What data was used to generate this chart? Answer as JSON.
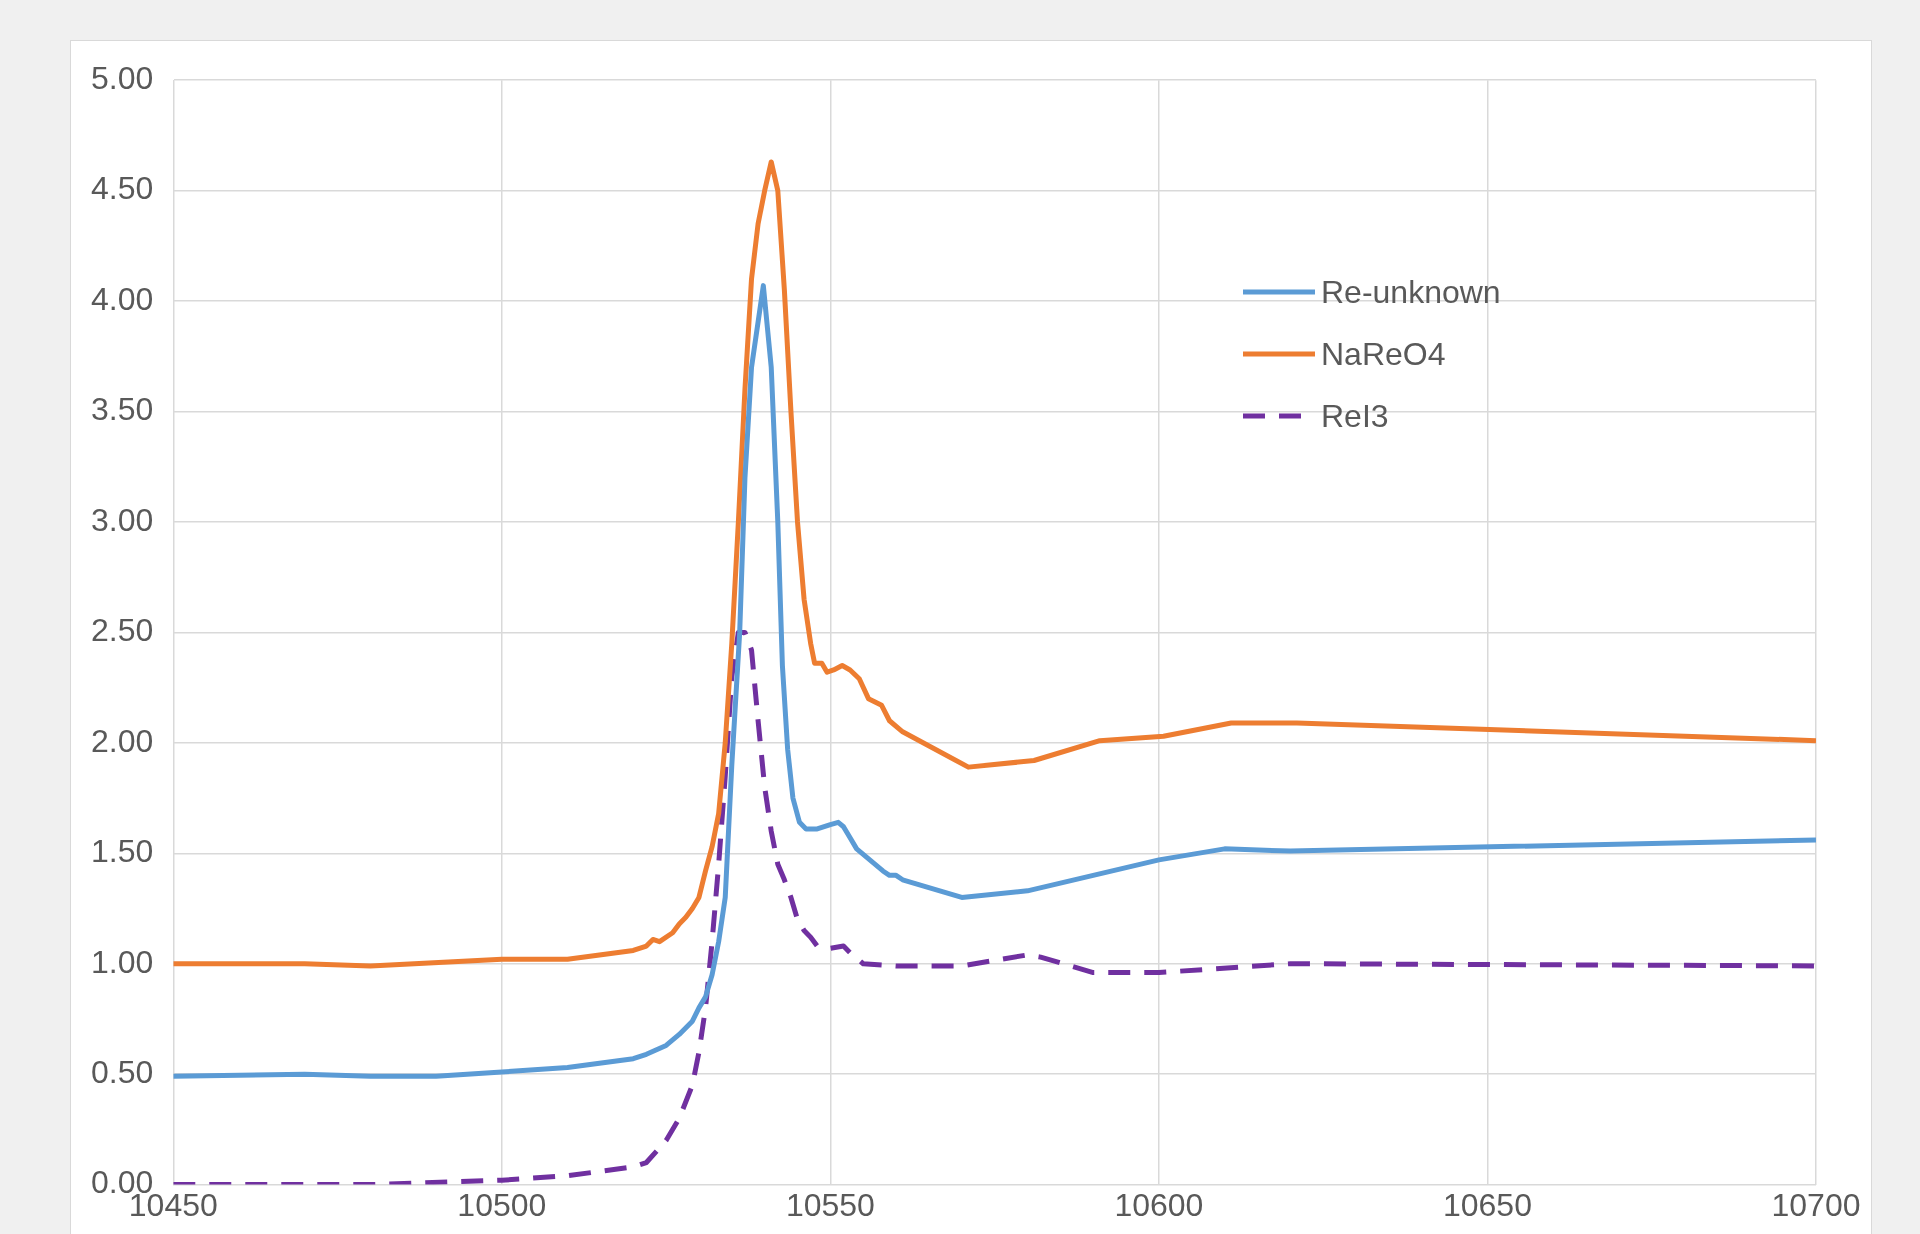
{
  "chart_data": {
    "type": "line",
    "xlim": [
      10450,
      10700
    ],
    "xticks": [
      10450,
      10500,
      10550,
      10600,
      10650,
      10700
    ],
    "ylim": [
      0,
      5
    ],
    "yticks": [
      {
        "value": 0,
        "label": "0.00"
      },
      {
        "value": 0.5,
        "label": "0.50"
      },
      {
        "value": 1,
        "label": "1.00"
      },
      {
        "value": 1.5,
        "label": "1.50"
      },
      {
        "value": 2,
        "label": "2.00"
      },
      {
        "value": 2.5,
        "label": "2.50"
      },
      {
        "value": 3,
        "label": "3.00"
      },
      {
        "value": 3.5,
        "label": "3.50"
      },
      {
        "value": 4,
        "label": "4.00"
      },
      {
        "value": 4.5,
        "label": "4.50"
      },
      {
        "value": 5,
        "label": "5.00"
      }
    ],
    "grid": true,
    "legend": "top right",
    "marker": "none",
    "series": [
      {
        "name": "Re-unknown",
        "color": "#5b9bd5",
        "line_style": "solid",
        "x": [
          10450,
          10470,
          10480,
          10490,
          10500,
          10510,
          10520,
          10522,
          10525,
          10527,
          10529,
          10530,
          10531,
          10532,
          10533,
          10534,
          10535,
          10536.2,
          10537,
          10538,
          10539.8,
          10541,
          10542,
          10542.7,
          10543.5,
          10544.3,
          10545.3,
          10546.3,
          10548,
          10550,
          10551.2,
          10552,
          10553,
          10554,
          10556,
          10558,
          10559,
          10560,
          10561,
          10570,
          10580,
          10590,
          10600,
          10610,
          10620,
          10700
        ],
        "values": [
          0.49,
          0.5,
          0.49,
          0.49,
          0.51,
          0.53,
          0.57,
          0.59,
          0.63,
          0.68,
          0.74,
          0.8,
          0.85,
          0.95,
          1.1,
          1.3,
          1.9,
          2.5,
          3.2,
          3.7,
          4.07,
          3.7,
          3.0,
          2.35,
          1.97,
          1.75,
          1.64,
          1.61,
          1.61,
          1.63,
          1.64,
          1.62,
          1.57,
          1.52,
          1.47,
          1.42,
          1.4,
          1.4,
          1.38,
          1.3,
          1.33,
          1.4,
          1.47,
          1.52,
          1.51,
          1.56
        ]
      },
      {
        "name": "NaReO4",
        "color": "#ed7d31",
        "line_style": "solid",
        "x": [
          10450,
          10470,
          10480,
          10500,
          10510,
          10520,
          10522,
          10523,
          10524,
          10526,
          10527,
          10528,
          10529,
          10530,
          10531,
          10532,
          10533,
          10534,
          10535,
          10536,
          10537,
          10538,
          10539,
          10540,
          10541,
          10542,
          10543,
          10544,
          10545,
          10546,
          10547,
          10547.6,
          10548.7,
          10549.5,
          10550.5,
          10551.8,
          10553,
          10554.4,
          10555.8,
          10557.8,
          10559,
          10561,
          10571,
          10581,
          10591,
          10600.7,
          10611,
          10621,
          10700
        ],
        "values": [
          1.0,
          1.0,
          0.99,
          1.02,
          1.02,
          1.06,
          1.08,
          1.11,
          1.1,
          1.14,
          1.18,
          1.21,
          1.25,
          1.3,
          1.42,
          1.53,
          1.68,
          2.0,
          2.45,
          3.0,
          3.6,
          4.1,
          4.35,
          4.5,
          4.63,
          4.5,
          4.05,
          3.5,
          3.0,
          2.65,
          2.45,
          2.36,
          2.36,
          2.32,
          2.33,
          2.35,
          2.33,
          2.29,
          2.2,
          2.17,
          2.1,
          2.05,
          1.89,
          1.92,
          2.01,
          2.03,
          2.09,
          2.09,
          2.01
        ]
      },
      {
        "name": "ReI3",
        "color": "#7030a0",
        "line_style": "dashed",
        "x": [
          10450,
          10480,
          10500,
          10510,
          10520,
          10522,
          10525,
          10527,
          10529,
          10530,
          10531,
          10532,
          10533,
          10534,
          10535,
          10536,
          10537,
          10538,
          10539,
          10540,
          10541,
          10542,
          10543,
          10544,
          10545,
          10546,
          10547,
          10548,
          10550,
          10552,
          10553,
          10555,
          10560,
          10570,
          10580,
          10582,
          10590,
          10600,
          10620,
          10700
        ],
        "values": [
          0.0,
          0.0,
          0.02,
          0.04,
          0.08,
          0.1,
          0.2,
          0.3,
          0.45,
          0.6,
          0.8,
          1.1,
          1.45,
          1.85,
          2.3,
          2.5,
          2.5,
          2.42,
          2.1,
          1.8,
          1.6,
          1.45,
          1.38,
          1.3,
          1.2,
          1.15,
          1.12,
          1.08,
          1.07,
          1.08,
          1.05,
          1.0,
          0.99,
          0.99,
          1.04,
          1.03,
          0.96,
          0.96,
          1.0,
          0.99
        ]
      }
    ]
  }
}
